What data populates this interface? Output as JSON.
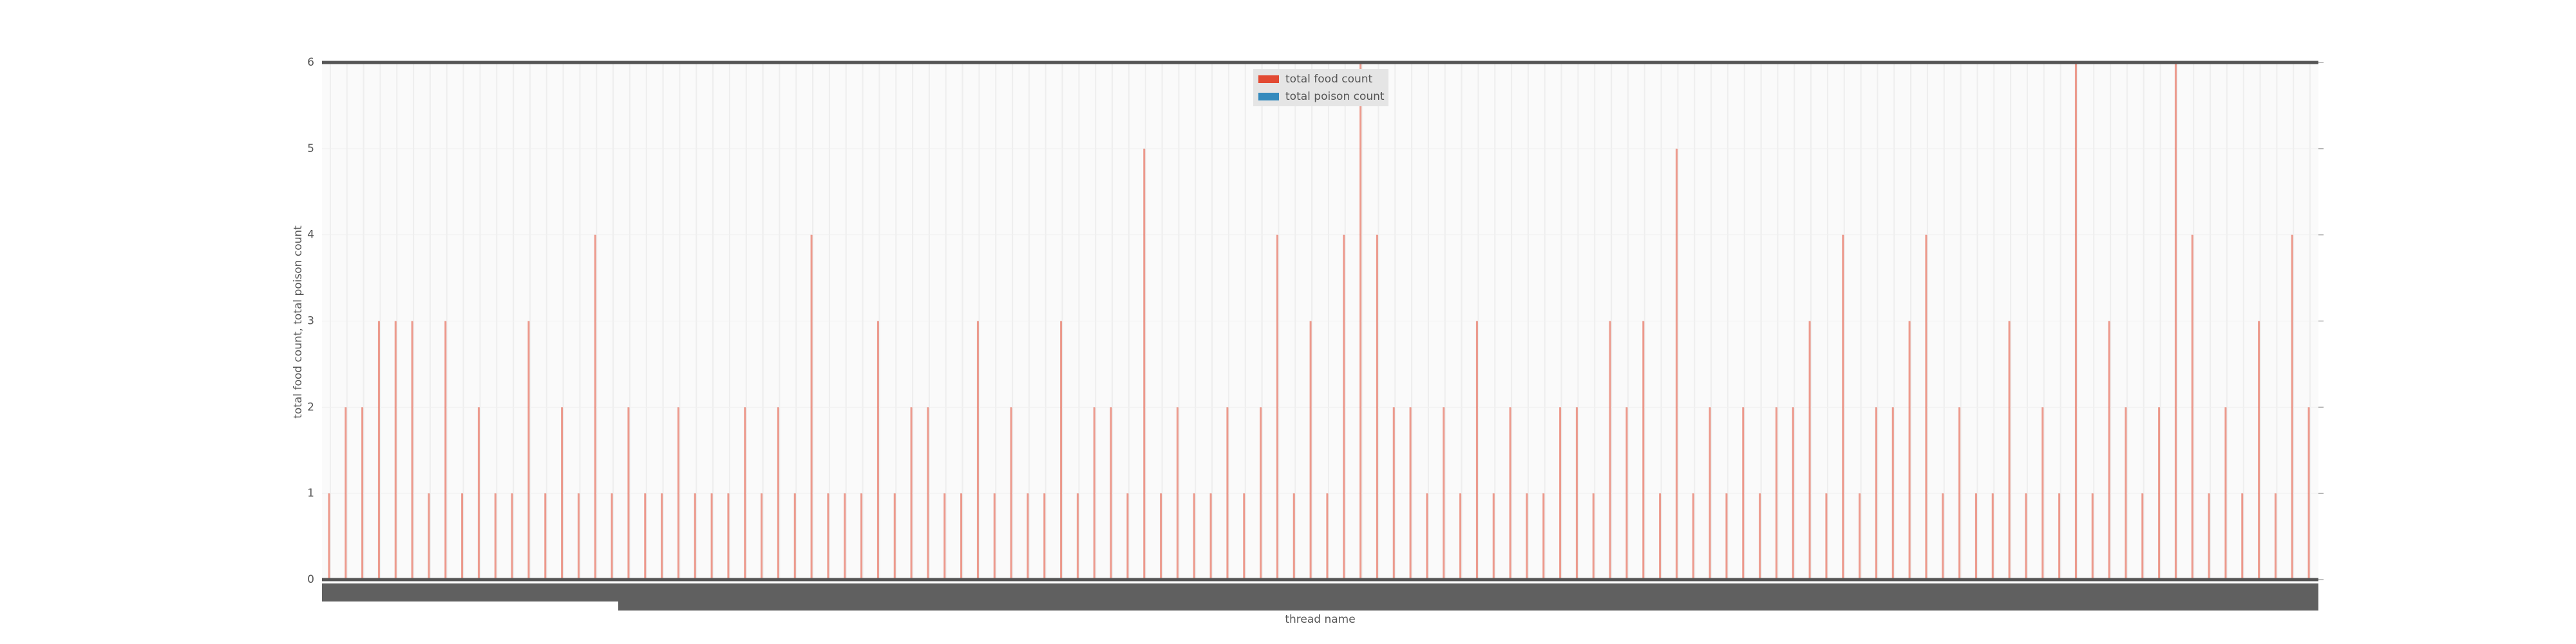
{
  "chart_data": {
    "type": "bar",
    "xlabel": "thread name",
    "ylabel": "total food count, total poison count",
    "categories": [
      null,
      null,
      null,
      null,
      null,
      null,
      null,
      null,
      null,
      null,
      null,
      null,
      null,
      null,
      null,
      null,
      null,
      null,
      null,
      null,
      null,
      null,
      null,
      null,
      null,
      null,
      null,
      null,
      null,
      null,
      null,
      null,
      null,
      null,
      null,
      null,
      null,
      null,
      null,
      null,
      null,
      null,
      null,
      null,
      null,
      null,
      null,
      null,
      null,
      null,
      null,
      null,
      null,
      null,
      null,
      null,
      null,
      null,
      null,
      null,
      null,
      null,
      null,
      null,
      null,
      null,
      null,
      null,
      null,
      null,
      null,
      null,
      null,
      null,
      null,
      null,
      null,
      null,
      null,
      null,
      null,
      null,
      null,
      null,
      null,
      null,
      null,
      null,
      null,
      null,
      null,
      null,
      null,
      null,
      null,
      null,
      null,
      null,
      null,
      null,
      null,
      null,
      null,
      null,
      null,
      null,
      null,
      null,
      null,
      null,
      null,
      null,
      null,
      null,
      null,
      null,
      null,
      null,
      null,
      null
    ],
    "series": [
      {
        "name": "total food count",
        "color": "#e24a33",
        "values": [
          1,
          2,
          2,
          3,
          3,
          3,
          1,
          3,
          1,
          2,
          1,
          1,
          3,
          1,
          2,
          1,
          4,
          1,
          2,
          1,
          1,
          2,
          1,
          1,
          1,
          2,
          1,
          2,
          1,
          4,
          1,
          1,
          1,
          3,
          1,
          2,
          2,
          1,
          1,
          3,
          1,
          2,
          1,
          1,
          3,
          1,
          2,
          2,
          1,
          5,
          1,
          2,
          1,
          1,
          2,
          1,
          2,
          4,
          1,
          3,
          1,
          4,
          6,
          4,
          2,
          2,
          1,
          2,
          1,
          3,
          1,
          2,
          1,
          1,
          2,
          2,
          1,
          3,
          2,
          3,
          1,
          5,
          1,
          2,
          1,
          2,
          1,
          2,
          2,
          3,
          1,
          4,
          1,
          2,
          2,
          3,
          4,
          1,
          2,
          1,
          1,
          3,
          1,
          2,
          1,
          6,
          1,
          3,
          2,
          1,
          2,
          6,
          4,
          1,
          2,
          1,
          3,
          1,
          4,
          2
        ]
      },
      {
        "name": "total poison count",
        "color": "#348abd",
        "values": [
          0,
          0,
          0,
          0,
          0,
          0,
          0,
          0,
          0,
          0,
          0,
          0,
          0,
          0,
          0,
          0,
          0,
          0,
          0,
          0,
          0,
          0,
          0,
          0,
          0,
          0,
          0,
          0,
          0,
          0,
          0,
          0,
          0,
          0,
          0,
          0,
          0,
          0,
          0,
          0,
          0,
          0,
          0,
          0,
          0,
          0,
          0,
          0,
          0,
          0,
          0,
          0,
          0,
          0,
          0,
          0,
          0,
          0,
          0,
          0,
          0,
          0,
          0,
          0,
          0,
          0,
          0,
          0,
          0,
          0,
          0,
          0,
          0,
          0,
          0,
          0,
          0,
          0,
          0,
          0,
          0,
          0,
          0,
          0,
          0,
          0,
          0,
          0,
          0,
          0,
          0,
          0,
          0,
          0,
          0,
          0,
          0,
          0,
          0,
          0,
          0,
          0,
          0,
          0,
          0,
          0,
          0,
          0,
          0,
          0,
          0,
          0,
          0,
          0,
          0,
          0,
          0,
          0,
          0,
          0
        ]
      }
    ],
    "ylim": [
      0,
      6
    ],
    "yticks": [
      0,
      1,
      2,
      3,
      4,
      5,
      6
    ],
    "grid": true,
    "legend": "top"
  }
}
